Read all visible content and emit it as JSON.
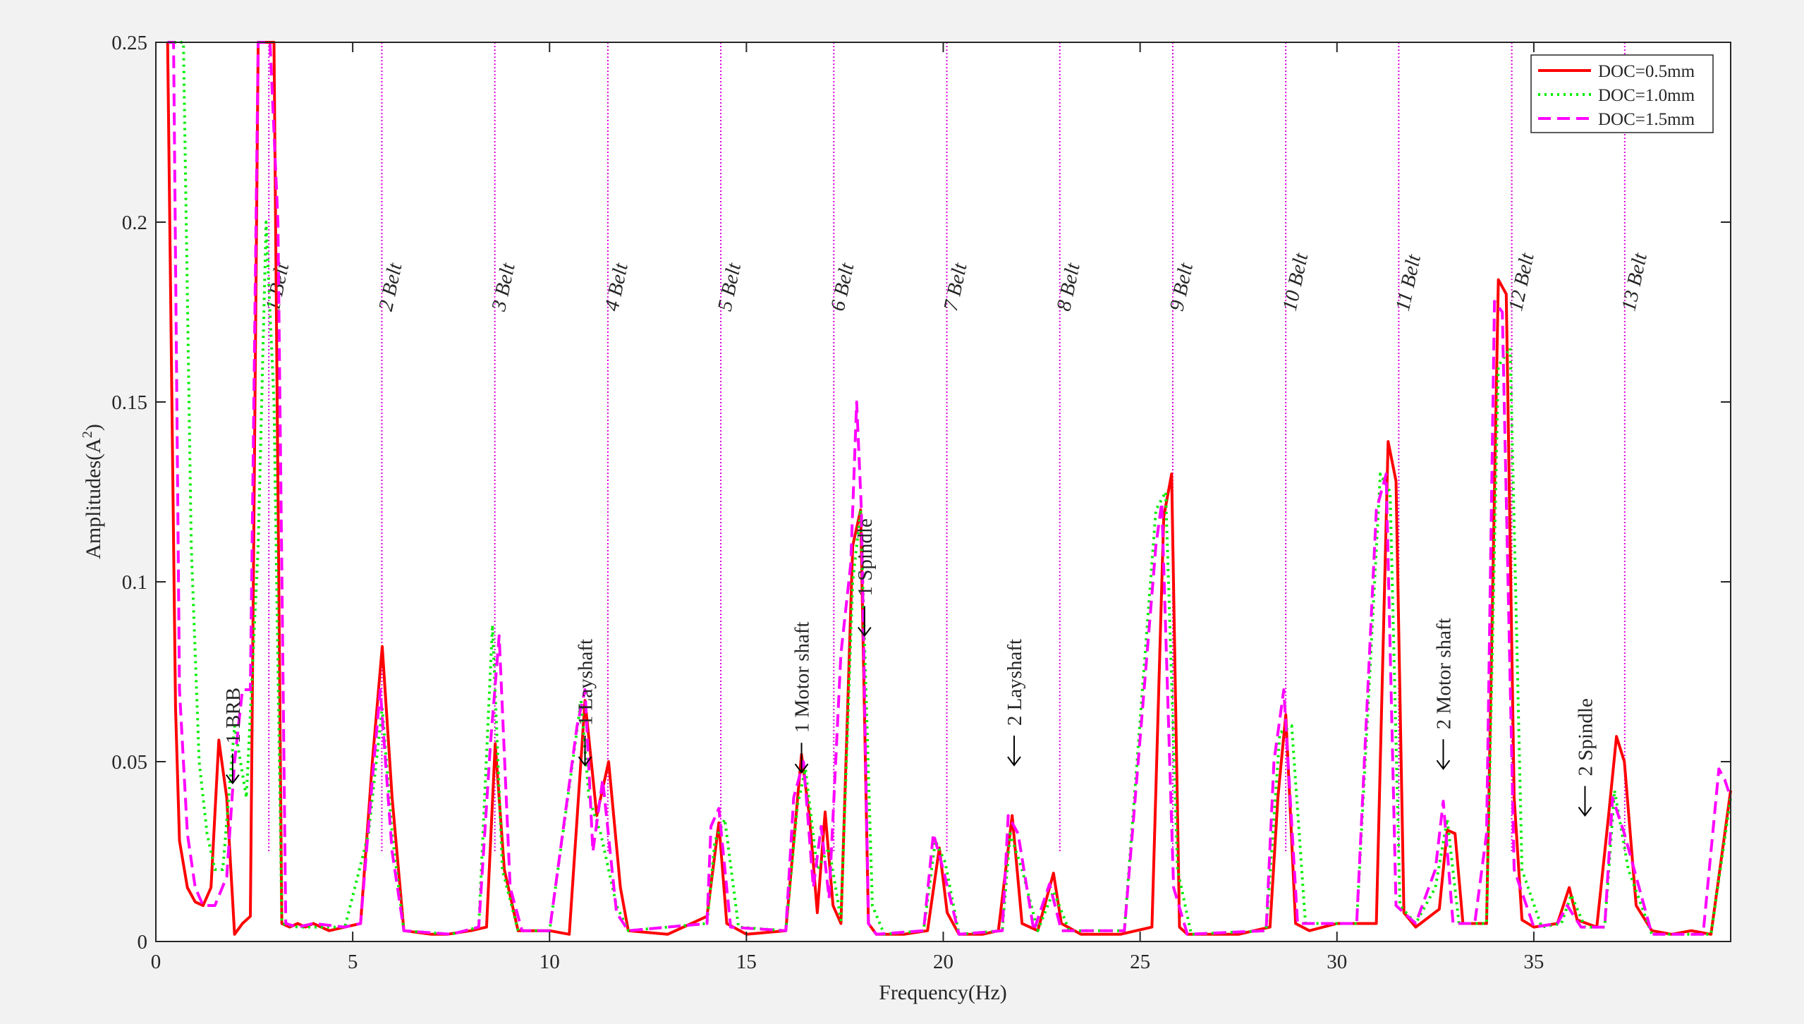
{
  "chart_data": {
    "type": "line",
    "title": "",
    "xlabel": "Frequency(Hz)",
    "ylabel_main": "Amplitudes(A",
    "ylabel_sup": "2",
    "ylabel_close": ")",
    "xlim": [
      0,
      40
    ],
    "ylim": [
      0,
      0.25
    ],
    "grid": false,
    "legend_position": "top-right",
    "xticks": [
      0,
      5,
      10,
      15,
      20,
      25,
      30,
      35
    ],
    "xtick_labels": [
      "0",
      "5",
      "10",
      "15",
      "20",
      "25",
      "30",
      "35"
    ],
    "yticks": [
      0,
      0.05,
      0.1,
      0.15,
      0.2,
      0.25
    ],
    "ytick_labels": [
      "0",
      "0.05",
      "0.1",
      "0.15",
      "0.2",
      "0.25"
    ],
    "belt_markers": [
      {
        "label": "1 Belt",
        "x": 2.87,
        "ymin": 0.025
      },
      {
        "label": "2 Belt",
        "x": 5.74,
        "ymin": 0.025
      },
      {
        "label": "3 Belt",
        "x": 8.61,
        "ymin": 0.025
      },
      {
        "label": "4 Belt",
        "x": 11.48,
        "ymin": 0.025
      },
      {
        "label": "5 Belt",
        "x": 14.35,
        "ymin": 0.025
      },
      {
        "label": "6 Belt",
        "x": 17.22,
        "ymin": 0.025
      },
      {
        "label": "7 Belt",
        "x": 20.09,
        "ymin": 0.025
      },
      {
        "label": "8 Belt",
        "x": 22.96,
        "ymin": 0.025
      },
      {
        "label": "9 Belt",
        "x": 25.83,
        "ymin": 0.025
      },
      {
        "label": "10 Belt",
        "x": 28.7,
        "ymin": 0.025
      },
      {
        "label": "11 Belt",
        "x": 31.57,
        "ymin": 0.025
      },
      {
        "label": "12 Belt",
        "x": 34.44,
        "ymin": 0.025
      },
      {
        "label": "13 Belt",
        "x": 37.31,
        "ymin": 0.025
      }
    ],
    "annotations": [
      {
        "label": "1 BRB",
        "x": 1.95,
        "y": 0.044,
        "color": "#000000"
      },
      {
        "label": "1 Layshaft",
        "x": 10.9,
        "y": 0.049,
        "color": "#000000"
      },
      {
        "label": "1 Motor shaft",
        "x": 16.4,
        "y": 0.047,
        "color": "#000000"
      },
      {
        "label": "1 Spindle",
        "x": 18.0,
        "y": 0.085,
        "color": "#0000cc"
      },
      {
        "label": "2 Layshaft",
        "x": 21.8,
        "y": 0.049,
        "color": "#000000"
      },
      {
        "label": "2 Motor shaft",
        "x": 32.7,
        "y": 0.048,
        "color": "#000000"
      },
      {
        "label": "2 Spindle",
        "x": 36.3,
        "y": 0.035,
        "color": "#0000cc"
      }
    ],
    "series": [
      {
        "name": "DOC=0.5mm",
        "color": "#ff0000",
        "style": "solid",
        "x": [
          0.3,
          0.5,
          0.6,
          0.8,
          1.0,
          1.2,
          1.4,
          1.6,
          1.8,
          2.0,
          2.2,
          2.4,
          2.6,
          2.8,
          3.0,
          3.2,
          3.4,
          3.6,
          3.8,
          4.0,
          4.4,
          4.8,
          5.2,
          5.5,
          5.75,
          6.0,
          6.3,
          7.0,
          7.4,
          8.0,
          8.4,
          8.62,
          8.85,
          9.2,
          10.0,
          10.5,
          10.9,
          11.2,
          11.5,
          11.8,
          12.0,
          13.0,
          14.0,
          14.3,
          14.5,
          15.0,
          16.0,
          16.4,
          16.6,
          16.8,
          17.0,
          17.2,
          17.4,
          17.7,
          17.9,
          18.1,
          18.3,
          18.5,
          19.0,
          19.6,
          19.9,
          20.1,
          20.4,
          21.0,
          21.4,
          21.75,
          22.0,
          22.4,
          22.8,
          23.0,
          23.5,
          24.5,
          25.3,
          25.6,
          25.8,
          26.0,
          26.2,
          26.6,
          27.5,
          28.3,
          28.5,
          28.7,
          28.95,
          29.3,
          30.0,
          30.4,
          31.0,
          31.3,
          31.5,
          31.7,
          32.0,
          32.6,
          32.8,
          33.0,
          33.2,
          33.8,
          34.1,
          34.3,
          34.5,
          34.7,
          35.0,
          35.6,
          35.9,
          36.1,
          36.6,
          36.9,
          37.1,
          37.3,
          37.6,
          38.0,
          38.5,
          39.0,
          39.5,
          40.0
        ],
        "y": [
          0.25,
          0.065,
          0.028,
          0.015,
          0.011,
          0.01,
          0.015,
          0.056,
          0.04,
          0.002,
          0.005,
          0.007,
          0.25,
          0.25,
          0.25,
          0.005,
          0.004,
          0.005,
          0.004,
          0.005,
          0.003,
          0.004,
          0.005,
          0.05,
          0.082,
          0.04,
          0.003,
          0.002,
          0.002,
          0.003,
          0.004,
          0.055,
          0.02,
          0.003,
          0.003,
          0.002,
          0.067,
          0.035,
          0.05,
          0.015,
          0.003,
          0.002,
          0.007,
          0.033,
          0.005,
          0.002,
          0.003,
          0.052,
          0.035,
          0.008,
          0.036,
          0.01,
          0.005,
          0.11,
          0.12,
          0.005,
          0.002,
          0.002,
          0.002,
          0.003,
          0.026,
          0.008,
          0.002,
          0.002,
          0.003,
          0.035,
          0.005,
          0.003,
          0.019,
          0.005,
          0.002,
          0.002,
          0.004,
          0.118,
          0.13,
          0.004,
          0.002,
          0.002,
          0.002,
          0.004,
          0.04,
          0.063,
          0.005,
          0.003,
          0.005,
          0.005,
          0.005,
          0.139,
          0.128,
          0.008,
          0.004,
          0.009,
          0.031,
          0.03,
          0.005,
          0.005,
          0.184,
          0.18,
          0.04,
          0.006,
          0.004,
          0.005,
          0.015,
          0.006,
          0.004,
          0.035,
          0.057,
          0.05,
          0.01,
          0.003,
          0.002,
          0.003,
          0.002,
          0.042
        ]
      },
      {
        "name": "DOC=1.0mm",
        "color": "#00ee00",
        "style": "dotted",
        "x": [
          0.3,
          0.7,
          0.9,
          1.1,
          1.3,
          1.5,
          1.7,
          2.0,
          2.3,
          2.6,
          2.8,
          3.0,
          3.2,
          3.6,
          4.0,
          4.8,
          5.4,
          5.75,
          6.0,
          6.3,
          7.5,
          8.2,
          8.55,
          8.8,
          9.2,
          10.0,
          10.8,
          11.0,
          11.3,
          11.7,
          12.0,
          14.0,
          14.2,
          14.45,
          14.8,
          16.0,
          16.3,
          16.5,
          16.8,
          17.1,
          17.4,
          17.7,
          17.9,
          18.2,
          18.5,
          19.5,
          19.8,
          20.05,
          20.4,
          21.5,
          21.7,
          22.0,
          22.4,
          22.8,
          23.2,
          24.6,
          25.4,
          25.65,
          25.95,
          26.3,
          28.2,
          28.55,
          28.85,
          29.2,
          30.5,
          31.1,
          31.35,
          31.6,
          32.0,
          32.5,
          32.8,
          33.1,
          33.8,
          34.1,
          34.4,
          34.7,
          35.2,
          35.7,
          35.95,
          36.3,
          36.8,
          37.05,
          37.4,
          38.0,
          39.5,
          40.0
        ],
        "y": [
          0.25,
          0.25,
          0.11,
          0.05,
          0.03,
          0.02,
          0.02,
          0.06,
          0.04,
          0.11,
          0.2,
          0.15,
          0.005,
          0.004,
          0.004,
          0.004,
          0.03,
          0.065,
          0.03,
          0.003,
          0.002,
          0.004,
          0.088,
          0.02,
          0.003,
          0.003,
          0.067,
          0.04,
          0.03,
          0.01,
          0.003,
          0.005,
          0.028,
          0.034,
          0.004,
          0.003,
          0.038,
          0.048,
          0.02,
          0.026,
          0.006,
          0.1,
          0.12,
          0.01,
          0.002,
          0.003,
          0.028,
          0.022,
          0.002,
          0.003,
          0.03,
          0.02,
          0.003,
          0.014,
          0.003,
          0.003,
          0.12,
          0.125,
          0.02,
          0.002,
          0.003,
          0.058,
          0.06,
          0.005,
          0.005,
          0.13,
          0.125,
          0.01,
          0.005,
          0.015,
          0.034,
          0.005,
          0.005,
          0.16,
          0.165,
          0.02,
          0.004,
          0.005,
          0.013,
          0.004,
          0.004,
          0.042,
          0.02,
          0.002,
          0.002,
          0.04
        ]
      },
      {
        "name": "DOC=1.5mm",
        "color": "#ff00ff",
        "style": "dashed",
        "x": [
          0.3,
          0.45,
          0.6,
          0.8,
          1.0,
          1.2,
          1.5,
          1.8,
          2.0,
          2.2,
          2.4,
          2.6,
          2.75,
          2.9,
          3.1,
          3.3,
          3.6,
          4.0,
          4.8,
          5.2,
          5.5,
          5.7,
          6.0,
          6.3,
          7.5,
          8.2,
          8.5,
          8.72,
          9.0,
          9.3,
          10.0,
          10.7,
          10.9,
          11.1,
          11.35,
          11.7,
          12.0,
          14.0,
          14.1,
          14.3,
          14.6,
          16.0,
          16.2,
          16.45,
          16.7,
          16.9,
          17.1,
          17.4,
          17.65,
          17.8,
          17.92,
          18.1,
          18.3,
          19.5,
          19.75,
          20.0,
          20.4,
          21.5,
          21.65,
          21.9,
          22.3,
          22.7,
          23.0,
          24.6,
          25.4,
          25.55,
          25.85,
          26.2,
          28.2,
          28.4,
          28.65,
          29.0,
          30.5,
          31.0,
          31.25,
          31.5,
          32.0,
          32.5,
          32.7,
          32.95,
          33.5,
          33.8,
          34.0,
          34.2,
          34.5,
          35.0,
          35.6,
          35.85,
          36.2,
          36.8,
          37.0,
          37.3,
          38.0,
          39.3,
          39.7,
          39.85,
          40.0
        ],
        "y": [
          0.25,
          0.25,
          0.07,
          0.03,
          0.015,
          0.01,
          0.01,
          0.018,
          0.05,
          0.07,
          0.07,
          0.25,
          0.25,
          0.25,
          0.2,
          0.005,
          0.004,
          0.005,
          0.004,
          0.005,
          0.045,
          0.07,
          0.025,
          0.003,
          0.002,
          0.004,
          0.055,
          0.085,
          0.015,
          0.003,
          0.003,
          0.06,
          0.07,
          0.025,
          0.045,
          0.008,
          0.003,
          0.005,
          0.032,
          0.037,
          0.004,
          0.003,
          0.04,
          0.05,
          0.015,
          0.032,
          0.012,
          0.08,
          0.105,
          0.15,
          0.12,
          0.005,
          0.002,
          0.003,
          0.03,
          0.02,
          0.002,
          0.003,
          0.035,
          0.03,
          0.003,
          0.016,
          0.003,
          0.003,
          0.11,
          0.122,
          0.015,
          0.002,
          0.003,
          0.05,
          0.07,
          0.005,
          0.005,
          0.12,
          0.13,
          0.01,
          0.005,
          0.02,
          0.039,
          0.005,
          0.005,
          0.03,
          0.178,
          0.175,
          0.02,
          0.004,
          0.005,
          0.01,
          0.004,
          0.004,
          0.04,
          0.03,
          0.002,
          0.002,
          0.048,
          0.045,
          0.04
        ]
      }
    ]
  }
}
